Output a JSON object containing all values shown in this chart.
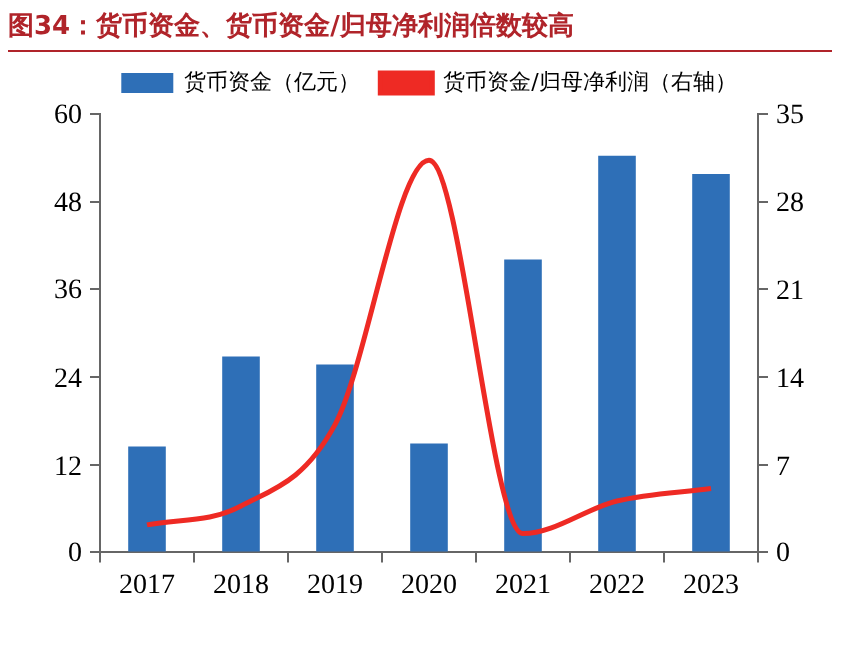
{
  "chart_data": {
    "type": "bar",
    "title": "图34：货币资金、货币资金/归母净利润倍数较高",
    "categories": [
      "2017",
      "2018",
      "2019",
      "2020",
      "2021",
      "2022",
      "2023"
    ],
    "series": [
      {
        "name": "货币资金（亿元）",
        "color": "#2e6fb7",
        "values": [
          14.5,
          26.8,
          25.7,
          14.9,
          40.1,
          54.3,
          51.8
        ]
      },
      {
        "name": "货币资金/归母净利润（右轴）",
        "type": "line",
        "axis": "y2",
        "color": "#ee2a24",
        "values": [
          2.2,
          3.7,
          10.2,
          31.3,
          1.5,
          4.1,
          5.1
        ]
      }
    ],
    "ylim": [
      0,
      60
    ],
    "yticks": [
      0,
      12,
      24,
      36,
      48,
      60
    ],
    "y2lim": [
      0,
      35
    ],
    "y2ticks": [
      0,
      7,
      14,
      21,
      28,
      35
    ],
    "grid": false,
    "legend": "top",
    "marker": "none",
    "line_style": "solid"
  }
}
